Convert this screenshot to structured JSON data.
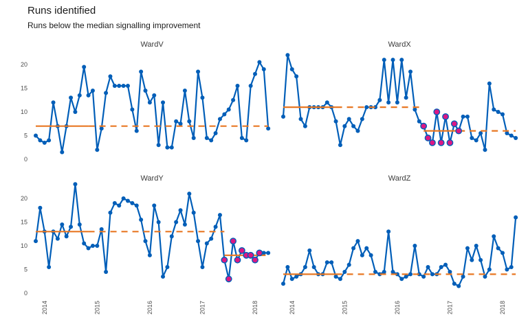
{
  "header": {
    "title": "Runs identified",
    "subtitle": "Runs below the median signalling improvement"
  },
  "chart_data": {
    "type": "line",
    "description": "Faceted run charts (2x2), monthly counts with baseline medians and rebased medians where a run below the median is identified",
    "facet_layout": "2x2",
    "grid": "off",
    "baseline_points": 13,
    "x_axis": {
      "tick_labels": [
        "2014",
        "2015",
        "2016",
        "2017",
        "2018"
      ],
      "tick_month_index": [
        2,
        14,
        26,
        38,
        50
      ]
    },
    "y_axis": {
      "ticks": [
        0,
        5,
        10,
        15,
        20
      ],
      "range": [
        0,
        22
      ]
    },
    "colors": {
      "line": "#005EB8",
      "point": "#005EB8",
      "median": "#E87722",
      "run_highlight": "#DB1884",
      "axis_text": "#4D4D4D",
      "facet_label": "#3a3a3a"
    },
    "panels": [
      {
        "name": "WardV",
        "median": 7,
        "values": [
          5,
          4,
          3.5,
          4,
          12,
          7,
          1.5,
          7,
          13,
          10,
          13.5,
          19.5,
          13.5,
          14.5,
          2,
          6.5,
          14,
          17.5,
          15.5,
          15.5,
          15.5,
          15.5,
          10.5,
          6,
          18.5,
          14.5,
          12,
          13.5,
          3,
          12,
          2.5,
          2.5,
          8,
          7.5,
          14.5,
          8,
          4.5,
          18.5,
          13,
          4.5,
          4,
          5.5,
          8.5,
          9.5,
          10.5,
          12.5,
          15.5,
          4.5,
          4,
          15.5,
          18,
          20.5,
          19,
          6.5
        ],
        "runs": []
      },
      {
        "name": "WardX",
        "median": 11,
        "values": [
          9,
          22,
          19,
          17.5,
          8.5,
          7,
          11,
          11,
          11,
          11,
          12,
          11,
          8,
          3,
          7,
          8.5,
          7,
          6,
          8.5,
          11,
          11,
          11,
          12.5,
          21,
          12,
          21,
          12,
          21,
          13,
          18.5,
          10.5,
          8,
          7,
          4.5,
          3.5,
          10,
          3.5,
          9,
          3.5,
          7.5,
          6,
          9,
          9,
          4.5,
          4,
          5.5,
          2,
          16,
          10.5,
          10,
          9.5,
          5.5,
          5,
          4.5
        ],
        "runs": [
          {
            "start_index": 32,
            "end_index": 40,
            "rebased_median": 6
          }
        ]
      },
      {
        "name": "WardY",
        "median": 13,
        "values": [
          11,
          18,
          13,
          5.5,
          13,
          11.5,
          14.5,
          12,
          14,
          23,
          14.5,
          10.5,
          9.5,
          10,
          10,
          13.5,
          4.5,
          17,
          19,
          18.5,
          20,
          19.5,
          19,
          18.5,
          15.5,
          11,
          8,
          18.5,
          15,
          3.5,
          5.5,
          12,
          15,
          17.5,
          14.5,
          21,
          17,
          11,
          5.5,
          10.5,
          11.5,
          14,
          16.5,
          7,
          3,
          11,
          7,
          9,
          8,
          8,
          7,
          8.5,
          8.5,
          8.5
        ],
        "runs": [
          {
            "start_index": 43,
            "end_index": 51,
            "rebased_median": 8
          }
        ]
      },
      {
        "name": "WardZ",
        "median": 4,
        "values": [
          2,
          5.5,
          3,
          3.5,
          4,
          5.5,
          9,
          5.5,
          4,
          4,
          6.5,
          6.5,
          3.5,
          3,
          4.5,
          6,
          9.5,
          11,
          8,
          9.5,
          8,
          4.5,
          4,
          4.5,
          13,
          4.5,
          4,
          3,
          3.5,
          4,
          10,
          4,
          3.5,
          5.5,
          4,
          4,
          5.5,
          6,
          4.5,
          2,
          1.5,
          3.5,
          9.5,
          7,
          10,
          7,
          3.5,
          5,
          12,
          9.5,
          8.5,
          5,
          5.5,
          16
        ],
        "runs": []
      }
    ]
  }
}
